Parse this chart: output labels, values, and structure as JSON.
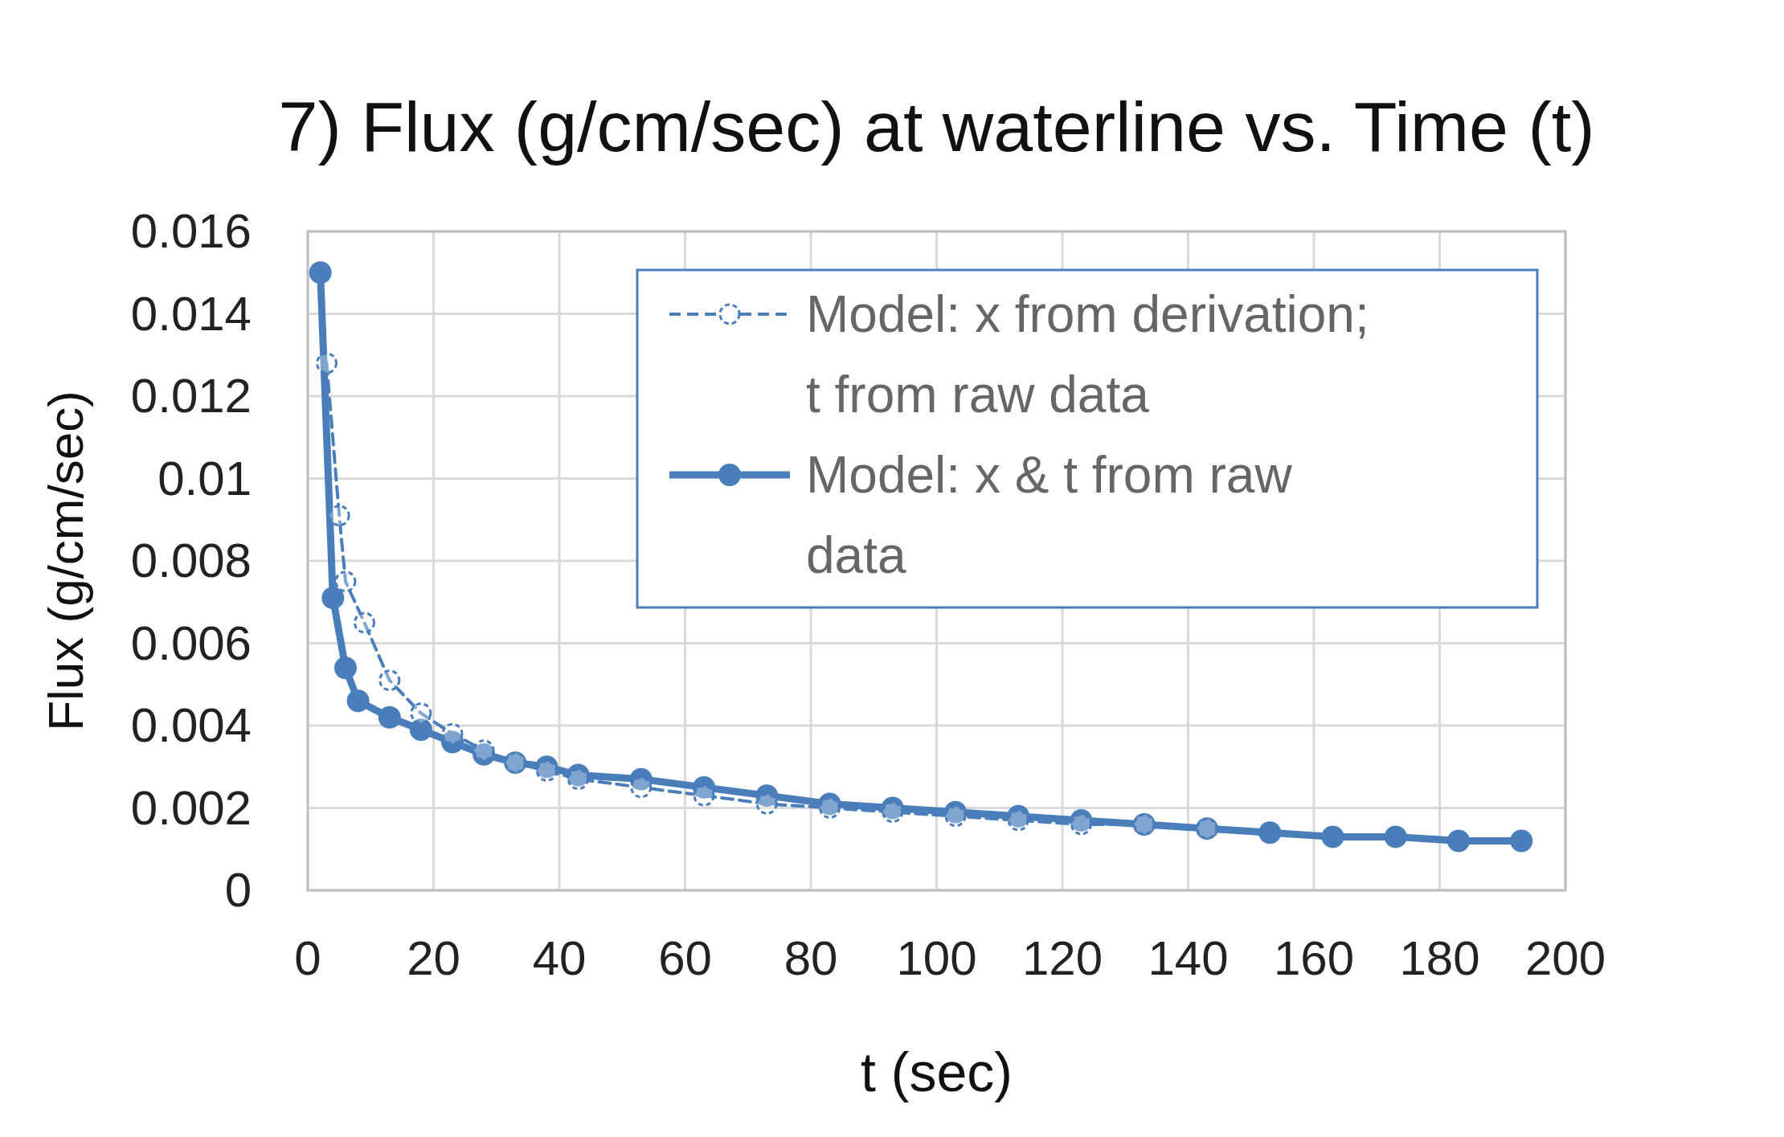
{
  "chart_data": {
    "type": "line",
    "title": "7) Flux (g/cm/sec) at waterline vs. Time (t)",
    "xlabel": "t (sec)",
    "ylabel": "Flux (g/cm/sec)",
    "xlim": [
      0,
      200
    ],
    "xticks": [
      0,
      20,
      40,
      60,
      80,
      100,
      120,
      140,
      160,
      180,
      200
    ],
    "ylim": [
      0,
      0.016
    ],
    "yticks": [
      0,
      0.002,
      0.004,
      0.006,
      0.008,
      {
        "value": 0.01,
        "label": "0.01"
      },
      0.012,
      0.014,
      0.016
    ],
    "grid": true,
    "legend": "top right",
    "series": [
      {
        "name": "Model: x from derivation; t from raw data",
        "color": "#4a7ebb",
        "line_style": "dashed",
        "marker": "circle",
        "x": [
          3,
          5,
          6,
          9,
          13,
          18,
          23,
          28,
          33,
          38,
          43,
          53,
          63,
          73,
          83,
          93,
          103,
          113,
          123,
          133,
          143
        ],
        "values": [
          0.0128,
          0.0091,
          0.0075,
          0.0065,
          0.0051,
          0.0043,
          0.0038,
          0.0034,
          0.0031,
          0.0029,
          0.0027,
          0.0025,
          0.0023,
          0.0021,
          0.002,
          0.0019,
          0.0018,
          0.0017,
          0.0016,
          0.0016,
          0.0015
        ]
      },
      {
        "name": "Model: x & t from raw data",
        "color": "#4a7ebb",
        "line_style": "solid",
        "marker": "circle",
        "x": [
          2,
          4,
          6,
          8,
          13,
          18,
          23,
          28,
          33,
          38,
          43,
          53,
          63,
          73,
          83,
          93,
          103,
          113,
          123,
          133,
          143,
          153,
          163,
          173,
          183,
          193
        ],
        "values": [
          0.015,
          0.0071,
          0.0054,
          0.0046,
          0.0042,
          0.0039,
          0.0036,
          0.0033,
          0.0031,
          0.003,
          0.0028,
          0.0027,
          0.0025,
          0.0023,
          0.0021,
          0.002,
          0.0019,
          0.0018,
          0.0017,
          0.0016,
          0.0015,
          0.0014,
          0.0013,
          0.0013,
          0.0012,
          0.0012
        ]
      }
    ]
  }
}
